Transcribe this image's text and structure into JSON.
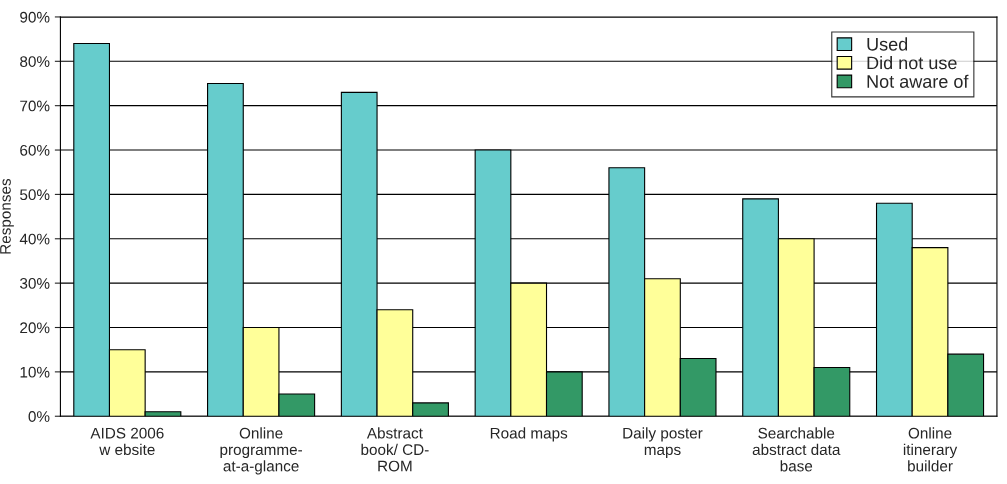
{
  "chart_data": {
    "type": "bar",
    "ylabel": "Responses",
    "categories": [
      "AIDS 2006\nw ebsite",
      "Online\nprogramme-\nat-a-glance",
      "Abstract\nbook/ CD-\nROM",
      "Road maps",
      "Daily poster\nmaps",
      "Searchable\nabstract data\nbase",
      "Online\nitinerary\nbuilder"
    ],
    "series": [
      {
        "name": "Used",
        "color": "#66cccc",
        "values": [
          84,
          75,
          73,
          60,
          56,
          49,
          48
        ]
      },
      {
        "name": "Did not use",
        "color": "#ffff99",
        "values": [
          15,
          20,
          24,
          30,
          31,
          40,
          38
        ]
      },
      {
        "name": "Not aware of",
        "color": "#339966",
        "values": [
          1,
          5,
          3,
          10,
          13,
          11,
          14
        ]
      }
    ],
    "ylim": [
      0,
      90
    ],
    "yticks": [
      {
        "value": 0,
        "label": "0%"
      },
      {
        "value": 10,
        "label": "10%"
      },
      {
        "value": 20,
        "label": "20%"
      },
      {
        "value": 30,
        "label": "30%"
      },
      {
        "value": 40,
        "label": "40%"
      },
      {
        "value": 50,
        "label": "50%"
      },
      {
        "value": 60,
        "label": "60%"
      },
      {
        "value": 70,
        "label": "70%"
      },
      {
        "value": 80,
        "label": "80%"
      },
      {
        "value": 90,
        "label": "90%"
      }
    ],
    "grid": "y",
    "legend": "top right"
  }
}
